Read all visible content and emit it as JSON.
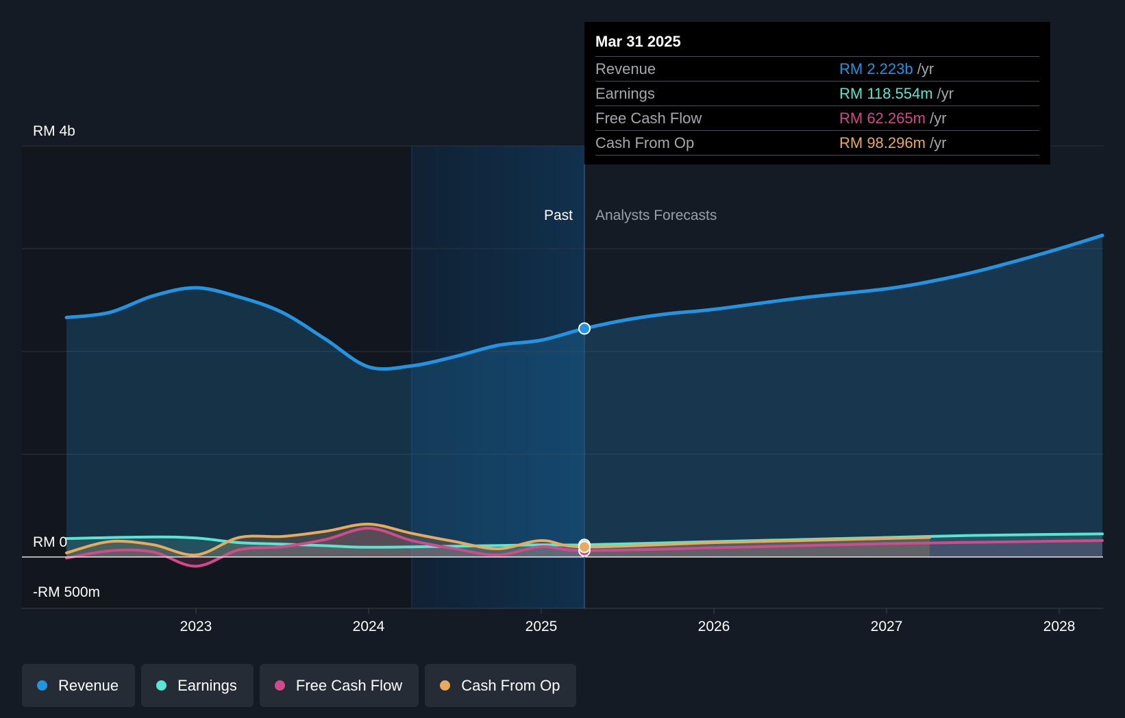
{
  "chart_data": {
    "type": "line",
    "y_axis": {
      "top_label": "RM 4b",
      "zero_label": "RM 0",
      "bottom_label": "-RM 500m",
      "ylim": [
        -500,
        4000
      ],
      "unit": "RM m"
    },
    "x_ticks": [
      "2023",
      "2024",
      "2025",
      "2026",
      "2027",
      "2028"
    ],
    "sections": {
      "past_label": "Past",
      "forecast_label": "Analysts Forecasts"
    },
    "divider_date": 2025.25,
    "series": [
      {
        "name": "Revenue",
        "color": "#2394e1",
        "points": [
          [
            2022.25,
            2330
          ],
          [
            2022.5,
            2380
          ],
          [
            2022.75,
            2540
          ],
          [
            2023.0,
            2620
          ],
          [
            2023.25,
            2530
          ],
          [
            2023.5,
            2380
          ],
          [
            2023.75,
            2120
          ],
          [
            2024.0,
            1850
          ],
          [
            2024.25,
            1860
          ],
          [
            2024.5,
            1950
          ],
          [
            2024.75,
            2060
          ],
          [
            2025.0,
            2110
          ],
          [
            2025.25,
            2223
          ],
          [
            2025.5,
            2310
          ],
          [
            2025.75,
            2370
          ],
          [
            2026.0,
            2410
          ],
          [
            2026.5,
            2520
          ],
          [
            2027.0,
            2610
          ],
          [
            2027.25,
            2680
          ],
          [
            2027.5,
            2770
          ],
          [
            2027.75,
            2880
          ],
          [
            2028.0,
            3000
          ],
          [
            2028.25,
            3130
          ]
        ]
      },
      {
        "name": "Earnings",
        "color": "#58e6d2",
        "points": [
          [
            2022.25,
            180
          ],
          [
            2022.75,
            195
          ],
          [
            2023.0,
            185
          ],
          [
            2023.25,
            140
          ],
          [
            2023.5,
            125
          ],
          [
            2023.75,
            110
          ],
          [
            2024.0,
            95
          ],
          [
            2024.5,
            105
          ],
          [
            2024.75,
            112
          ],
          [
            2025.0,
            118
          ],
          [
            2025.25,
            118.554
          ],
          [
            2026.0,
            150
          ],
          [
            2026.5,
            170
          ],
          [
            2027.0,
            190
          ],
          [
            2027.5,
            210
          ],
          [
            2028.25,
            225
          ]
        ]
      },
      {
        "name": "Free Cash Flow",
        "color": "#d04a8c",
        "points": [
          [
            2022.25,
            -10
          ],
          [
            2022.5,
            60
          ],
          [
            2022.75,
            50
          ],
          [
            2023.0,
            -90
          ],
          [
            2023.25,
            70
          ],
          [
            2023.5,
            100
          ],
          [
            2023.75,
            170
          ],
          [
            2024.0,
            280
          ],
          [
            2024.25,
            160
          ],
          [
            2024.5,
            80
          ],
          [
            2024.75,
            20
          ],
          [
            2025.0,
            100
          ],
          [
            2025.25,
            62.265
          ],
          [
            2026.0,
            90
          ],
          [
            2027.0,
            130
          ],
          [
            2028.25,
            160
          ]
        ]
      },
      {
        "name": "Cash From Op",
        "color": "#e8aa5c",
        "points": [
          [
            2022.25,
            40
          ],
          [
            2022.5,
            150
          ],
          [
            2022.75,
            120
          ],
          [
            2023.0,
            20
          ],
          [
            2023.25,
            190
          ],
          [
            2023.5,
            200
          ],
          [
            2023.75,
            250
          ],
          [
            2024.0,
            320
          ],
          [
            2024.25,
            230
          ],
          [
            2024.5,
            150
          ],
          [
            2024.75,
            80
          ],
          [
            2025.0,
            160
          ],
          [
            2025.25,
            98.296
          ],
          [
            2026.0,
            140
          ],
          [
            2026.5,
            160
          ],
          [
            2027.0,
            180
          ],
          [
            2027.25,
            190
          ]
        ]
      }
    ],
    "tooltip": {
      "date": "Mar 31 2025",
      "rows": [
        {
          "label": "Revenue",
          "value": "RM 2.223b",
          "unit": "/yr",
          "color": "#2394e1"
        },
        {
          "label": "Earnings",
          "value": "RM 118.554m",
          "unit": "/yr",
          "color": "#58e6d2"
        },
        {
          "label": "Free Cash Flow",
          "value": "RM 62.265m",
          "unit": "/yr",
          "color": "#d04a8c"
        },
        {
          "label": "Cash From Op",
          "value": "RM 98.296m",
          "unit": "/yr",
          "color": "#e8aa5c"
        }
      ]
    }
  },
  "legend": [
    {
      "label": "Revenue",
      "color": "#2394e1"
    },
    {
      "label": "Earnings",
      "color": "#58e6d2"
    },
    {
      "label": "Free Cash Flow",
      "color": "#d04a8c"
    },
    {
      "label": "Cash From Op",
      "color": "#e8aa5c"
    }
  ]
}
